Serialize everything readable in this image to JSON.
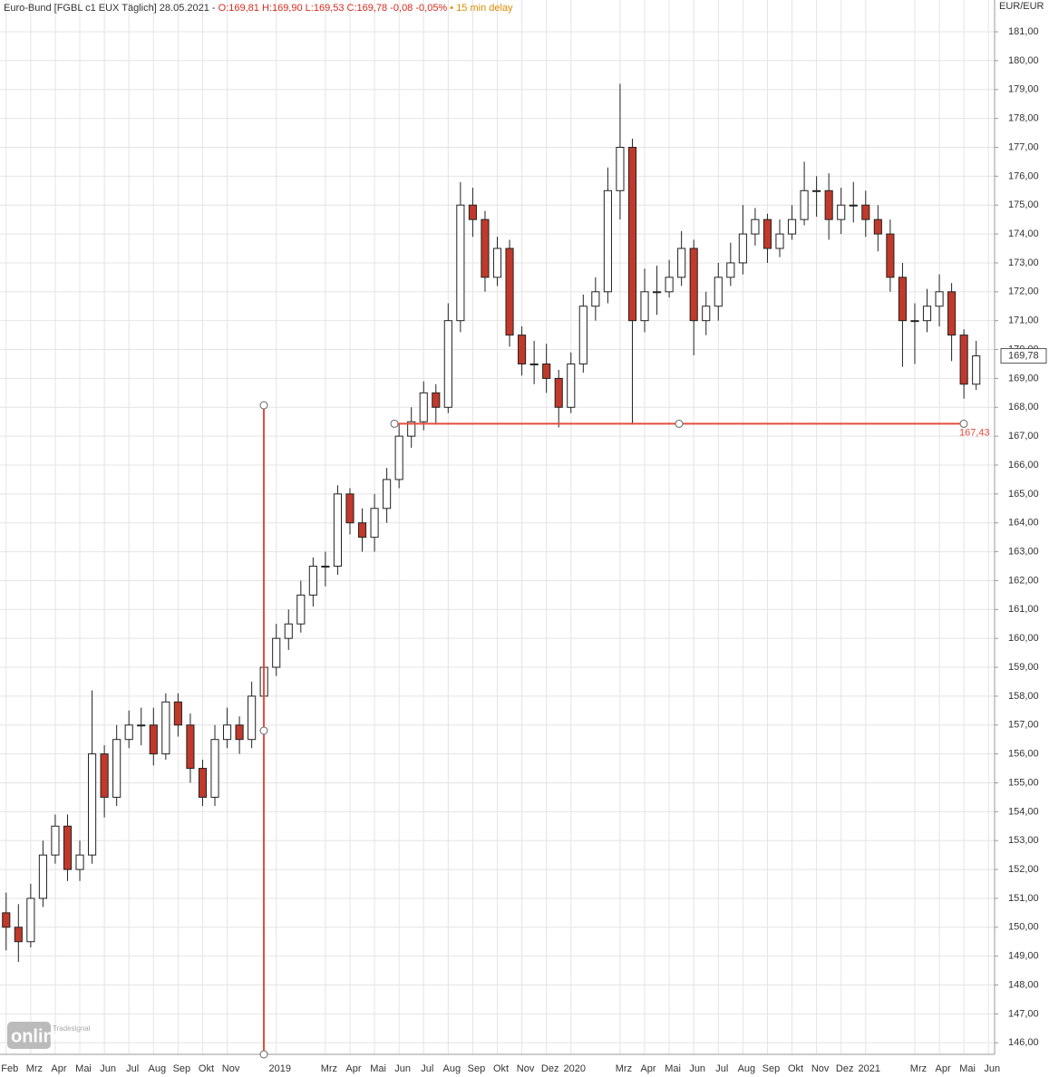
{
  "chart_data": {
    "type": "candlestick",
    "title": "Euro-Bund [FGBL c1 EUX Täglich] 28.05.2021 -",
    "quote": "O:169,81 H:169,90 L:169,53 C:169,78 -0,08 -0,05%",
    "delay": "• 15 min delay",
    "currency": "EUR/EUR",
    "logo": "online",
    "logo_brand": "Tradesignal",
    "categories": [
      "Feb",
      null,
      "Mrz",
      null,
      "Apr",
      null,
      "Mai",
      null,
      "Jun",
      null,
      "Jul",
      null,
      "Aug",
      null,
      "Sep",
      null,
      "Okt",
      null,
      "Nov",
      null,
      null,
      null,
      "2019",
      null,
      null,
      null,
      "Mrz",
      null,
      "Apr",
      null,
      "Mai",
      null,
      "Jun",
      null,
      "Jul",
      null,
      "Aug",
      null,
      "Sep",
      null,
      "Okt",
      null,
      "Nov",
      null,
      "Dez",
      null,
      "2020",
      null,
      null,
      null,
      "Mrz",
      null,
      "Apr",
      null,
      "Mai",
      null,
      "Jun",
      null,
      "Jul",
      null,
      "Aug",
      null,
      "Sep",
      null,
      "Okt",
      null,
      "Nov",
      null,
      "Dez",
      null,
      "2021",
      null,
      null,
      null,
      "Mrz",
      null,
      "Apr",
      null,
      "Mai",
      null,
      "Jun"
    ],
    "open": [
      150.5,
      150,
      149.5,
      151,
      152.5,
      153.5,
      152,
      152.5,
      156,
      154.5,
      156.5,
      157,
      157,
      156,
      157.8,
      157,
      155.5,
      154.5,
      156.5,
      157,
      156.5,
      158,
      159,
      160,
      160.5,
      161.5,
      162.5,
      162.5,
      165,
      164,
      163.5,
      164.5,
      165.5,
      167,
      167.5,
      168.5,
      168,
      171,
      175,
      174.5,
      172.5,
      173.5,
      170.5,
      169.5,
      169.5,
      169,
      168,
      169.5,
      171.5,
      172,
      175.5,
      177,
      171,
      172,
      172,
      172.5,
      173.5,
      171,
      171.5,
      172.5,
      173,
      174,
      174.5,
      173.5,
      174,
      174.5,
      175.5,
      175.5,
      174.5,
      175,
      175,
      174.5,
      174,
      172.5,
      171,
      171,
      171.5,
      172,
      170.5,
      168.8,
      null
    ],
    "high": [
      151.2,
      150.8,
      151.5,
      153,
      153.9,
      153.9,
      153,
      158.2,
      156.3,
      157,
      157.5,
      157.6,
      157.6,
      158.1,
      158.1,
      157.4,
      155.8,
      157,
      157.6,
      157.3,
      158.5,
      159.5,
      160.5,
      161,
      162,
      162.8,
      163,
      165.3,
      165.2,
      164.5,
      165,
      165.9,
      167.4,
      168,
      168.9,
      168.8,
      171.6,
      175.8,
      175.6,
      174.8,
      173.9,
      173.8,
      170.8,
      170.3,
      170.2,
      169.3,
      169.9,
      171.9,
      172.5,
      176.3,
      179.2,
      177.3,
      172.8,
      172.9,
      173.1,
      174.1,
      173.8,
      172,
      173,
      173.7,
      175,
      174.9,
      174.7,
      174.5,
      175,
      176.5,
      176,
      176.1,
      175.6,
      175.8,
      175.5,
      175,
      174.5,
      173,
      171.6,
      172.1,
      172.6,
      172.3,
      170.7,
      170.3,
      null
    ],
    "low": [
      149.2,
      148.8,
      149.3,
      150.7,
      152.2,
      151.6,
      151.6,
      152.2,
      153.8,
      154.2,
      156.2,
      156.3,
      155.6,
      155.8,
      156.6,
      155,
      154.2,
      154.2,
      156.2,
      156,
      156.2,
      157.8,
      158.7,
      159.6,
      160.2,
      161.1,
      161.8,
      162.2,
      163.6,
      163,
      163,
      164,
      165.2,
      166.6,
      167.2,
      167.4,
      167.8,
      170.6,
      173.9,
      172,
      172.2,
      170.1,
      169.1,
      168.8,
      168.5,
      167.3,
      167.8,
      169.2,
      171,
      171.6,
      174.5,
      167.4,
      170.6,
      171.2,
      171.8,
      172.2,
      169.8,
      170.5,
      171,
      172.2,
      172.6,
      173.6,
      173,
      173.2,
      173.8,
      174.3,
      174.6,
      173.8,
      174,
      174.4,
      173.9,
      173.4,
      172,
      169.4,
      169.5,
      170.6,
      170.8,
      169.6,
      168.3,
      168.6,
      null
    ],
    "close": [
      150,
      149.5,
      151,
      152.5,
      153.5,
      152,
      152.5,
      156,
      154.5,
      156.5,
      157,
      157,
      156,
      157.8,
      157,
      155.5,
      154.5,
      156.5,
      157,
      156.5,
      158,
      159,
      160,
      160.5,
      161.5,
      162.5,
      162.5,
      165,
      164,
      163.5,
      164.5,
      165.5,
      167,
      167.5,
      168.5,
      168,
      171,
      175,
      174.5,
      172.5,
      173.5,
      170.5,
      169.5,
      169.5,
      169,
      168,
      169.5,
      171.5,
      172,
      175.5,
      177,
      171,
      172,
      172,
      172.5,
      173.5,
      171,
      171.5,
      172.5,
      173,
      174,
      174.5,
      173.5,
      174,
      174.5,
      175.5,
      175.5,
      174.5,
      175,
      175,
      174.5,
      174,
      172.5,
      171,
      171,
      171.5,
      172,
      170.5,
      168.8,
      169.78,
      null
    ],
    "up_color": "#ffffff",
    "down_color": "#c0392b",
    "last_value": {
      "value": 169.78,
      "label": "169,78"
    },
    "support": {
      "value": 167.43,
      "label": "167,43",
      "color": "#e74c3c"
    },
    "ylim": [
      145.6,
      182.1
    ],
    "yticks": [
      {
        "value": 146,
        "label": "146,00"
      },
      {
        "value": 147,
        "label": "147,00"
      },
      {
        "value": 148,
        "label": "148,00"
      },
      {
        "value": 149,
        "label": "149,00"
      },
      {
        "value": 150,
        "label": "150,00"
      },
      {
        "value": 151,
        "label": "151,00"
      },
      {
        "value": 152,
        "label": "152,00"
      },
      {
        "value": 153,
        "label": "153,00"
      },
      {
        "value": 154,
        "label": "154,00"
      },
      {
        "value": 155,
        "label": "155,00"
      },
      {
        "value": 156,
        "label": "156,00"
      },
      {
        "value": 157,
        "label": "157,00"
      },
      {
        "value": 158,
        "label": "158,00"
      },
      {
        "value": 159,
        "label": "159,00"
      },
      {
        "value": 160,
        "label": "160,00"
      },
      {
        "value": 161,
        "label": "161,00"
      },
      {
        "value": 162,
        "label": "162,00"
      },
      {
        "value": 163,
        "label": "163,00"
      },
      {
        "value": 164,
        "label": "164,00"
      },
      {
        "value": 165,
        "label": "165,00"
      },
      {
        "value": 166,
        "label": "166,00"
      },
      {
        "value": 167,
        "label": "167,00"
      },
      {
        "value": 168,
        "label": "168,00"
      },
      {
        "value": 169,
        "label": "169,00"
      },
      {
        "value": 170,
        "label": "170,00"
      },
      {
        "value": 171,
        "label": "171,00"
      },
      {
        "value": 172,
        "label": "172,00"
      },
      {
        "value": 173,
        "label": "173,00"
      },
      {
        "value": 174,
        "label": "174,00"
      },
      {
        "value": 175,
        "label": "175,00"
      },
      {
        "value": 176,
        "label": "176,00"
      },
      {
        "value": 177,
        "label": "177,00"
      },
      {
        "value": 178,
        "label": "178,00"
      },
      {
        "value": 179,
        "label": "179,00"
      },
      {
        "value": 180,
        "label": "180,00"
      },
      {
        "value": 181,
        "label": "181,00"
      }
    ],
    "grid": true
  }
}
